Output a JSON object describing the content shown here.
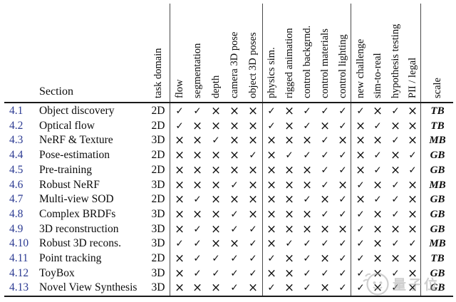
{
  "page": {
    "background": "#ffffff",
    "text_color": "#0c0c0c",
    "accent_color": "#2b3a92"
  },
  "table": {
    "corner_label": "Section",
    "columns": [
      "task domain",
      "flow",
      "segmentation",
      "depth",
      "camera 3D pose",
      "object 3D poses",
      "physics sim.",
      "rigged animation",
      "control backgrnd.",
      "control materials",
      "control lighting",
      "new challenge",
      "sim-to-real",
      "hypothesis testing",
      "PII / legal",
      "scale"
    ],
    "mark_glyphs": {
      "check": "✓",
      "cross": "×"
    },
    "rows": [
      {
        "id": "4.1",
        "name": "Object discovery",
        "domain": "2D",
        "marks": [
          "check",
          "check",
          "cross",
          "cross",
          "cross",
          "check",
          "cross",
          "check",
          "check",
          "check",
          "check",
          "cross",
          "check",
          "cross"
        ],
        "scale": "TB"
      },
      {
        "id": "4.2",
        "name": "Optical flow",
        "domain": "2D",
        "marks": [
          "check",
          "cross",
          "cross",
          "cross",
          "cross",
          "check",
          "cross",
          "check",
          "cross",
          "check",
          "cross",
          "check",
          "cross",
          "cross"
        ],
        "scale": "TB"
      },
      {
        "id": "4.3",
        "name": "NeRF & Texture",
        "domain": "3D",
        "marks": [
          "cross",
          "cross",
          "check",
          "cross",
          "cross",
          "cross",
          "cross",
          "cross",
          "check",
          "cross",
          "cross",
          "cross",
          "check",
          "cross"
        ],
        "scale": "MB"
      },
      {
        "id": "4.4",
        "name": "Pose-estimation",
        "domain": "2D",
        "marks": [
          "cross",
          "cross",
          "cross",
          "cross",
          "check",
          "cross",
          "check",
          "check",
          "check",
          "check",
          "cross",
          "check",
          "cross",
          "check"
        ],
        "scale": "GB"
      },
      {
        "id": "4.5",
        "name": "Pre-training",
        "domain": "2D",
        "marks": [
          "cross",
          "cross",
          "cross",
          "cross",
          "cross",
          "cross",
          "cross",
          "cross",
          "check",
          "check",
          "cross",
          "check",
          "cross",
          "check"
        ],
        "scale": "GB"
      },
      {
        "id": "4.6",
        "name": "Robust NeRF",
        "domain": "3D",
        "marks": [
          "cross",
          "cross",
          "cross",
          "check",
          "cross",
          "cross",
          "cross",
          "cross",
          "check",
          "cross",
          "check",
          "cross",
          "check",
          "cross"
        ],
        "scale": "MB"
      },
      {
        "id": "4.7",
        "name": "Multi-view SOD",
        "domain": "2D",
        "marks": [
          "cross",
          "check",
          "cross",
          "cross",
          "cross",
          "cross",
          "cross",
          "check",
          "cross",
          "check",
          "cross",
          "check",
          "check",
          "cross"
        ],
        "scale": "GB"
      },
      {
        "id": "4.8",
        "name": "Complex BRDFs",
        "domain": "3D",
        "marks": [
          "cross",
          "cross",
          "cross",
          "check",
          "cross",
          "cross",
          "cross",
          "cross",
          "check",
          "check",
          "check",
          "cross",
          "check",
          "cross"
        ],
        "scale": "GB"
      },
      {
        "id": "4.9",
        "name": "3D reconstruction",
        "domain": "3D",
        "marks": [
          "cross",
          "check",
          "cross",
          "check",
          "check",
          "cross",
          "cross",
          "cross",
          "cross",
          "cross",
          "check",
          "cross",
          "cross",
          "cross"
        ],
        "scale": "GB"
      },
      {
        "id": "4.10",
        "name": "Robust 3D recons.",
        "domain": "3D",
        "marks": [
          "check",
          "check",
          "cross",
          "cross",
          "check",
          "cross",
          "check",
          "check",
          "check",
          "check",
          "check",
          "cross",
          "check",
          "check"
        ],
        "scale": "MB"
      },
      {
        "id": "4.11",
        "name": "Point tracking",
        "domain": "2D",
        "marks": [
          "cross",
          "check",
          "check",
          "check",
          "check",
          "check",
          "cross",
          "check",
          "cross",
          "check",
          "check",
          "cross",
          "cross",
          "cross"
        ],
        "scale": "TB"
      },
      {
        "id": "4.12",
        "name": "ToyBox",
        "domain": "3D",
        "marks": [
          "cross",
          "check",
          "check",
          "check",
          "check",
          "cross",
          "cross",
          "check",
          "check",
          "check",
          "check",
          "cross",
          "check",
          "cross"
        ],
        "scale": "GB"
      },
      {
        "id": "4.13",
        "name": "Novel View Synthesis",
        "domain": "3D",
        "marks": [
          "cross",
          "cross",
          "cross",
          "check",
          "cross",
          "check",
          "cross",
          "check",
          "cross",
          "check",
          "check",
          "cross",
          "check",
          "cross"
        ],
        "scale": "GB"
      }
    ]
  },
  "watermark": {
    "text": "量子位",
    "color": "#a9a9a9"
  }
}
